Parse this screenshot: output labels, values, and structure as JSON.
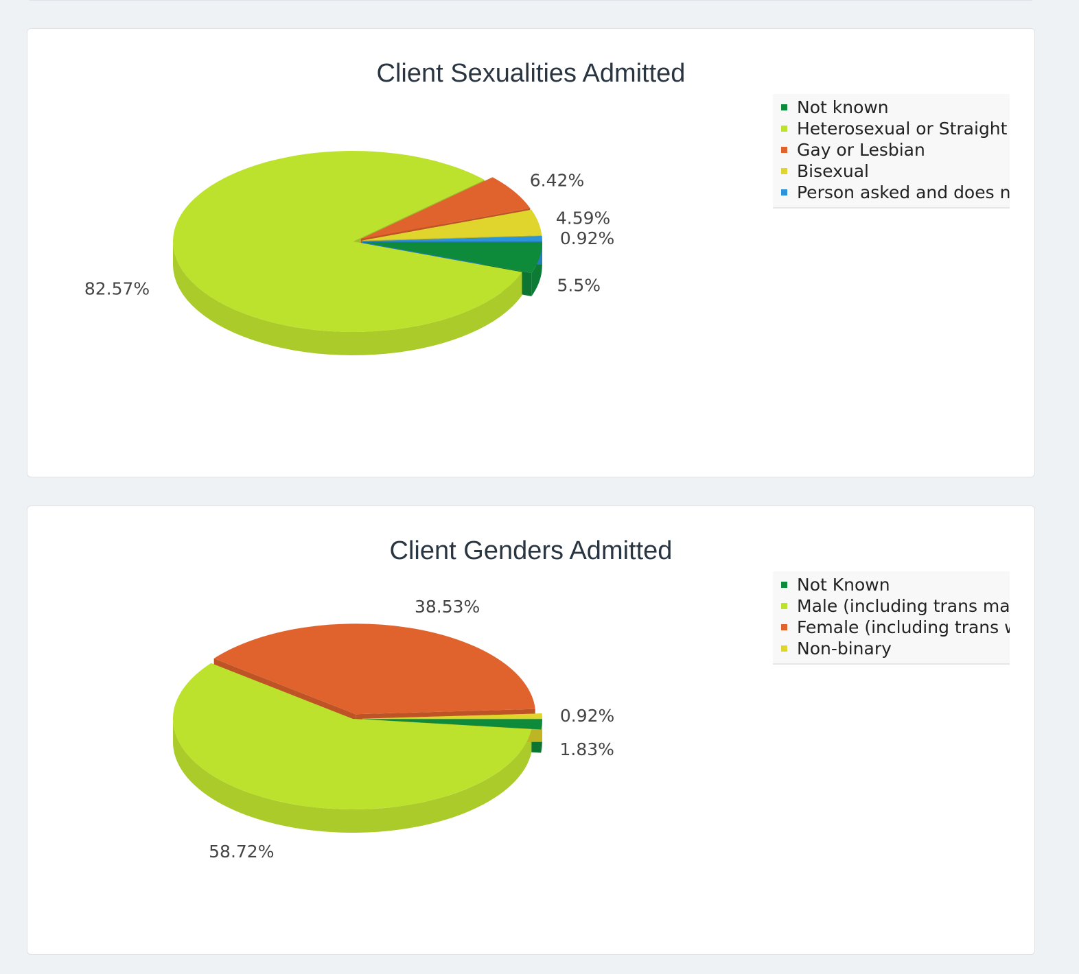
{
  "chart_data": [
    {
      "type": "pie",
      "title": "Client Sexualities Admitted",
      "legend_position": "top-right",
      "slices": [
        {
          "label": "Not known",
          "value": 5.5,
          "display": "5.5%",
          "color": "#0d8a3a"
        },
        {
          "label": "Heterosexual or Straight",
          "value": 82.57,
          "display": "82.57%",
          "color": "#bde22e"
        },
        {
          "label": "Gay or Lesbian",
          "value": 6.42,
          "display": "6.42%",
          "color": "#e0632d"
        },
        {
          "label": "Bisexual",
          "value": 4.59,
          "display": "4.59%",
          "color": "#e0d52c"
        },
        {
          "label": "Person asked and does not wish to answer",
          "legend_text": "Person asked and does n",
          "value": 0.92,
          "display": "0.92%",
          "color": "#2b93d9"
        }
      ]
    },
    {
      "type": "pie",
      "title": "Client Genders Admitted",
      "legend_position": "top-right",
      "slices": [
        {
          "label": "Not Known",
          "value": 1.83,
          "display": "1.83%",
          "color": "#0d8a3a"
        },
        {
          "label": "Male (including trans man)",
          "legend_text": "Male (including trans mar",
          "value": 58.72,
          "display": "58.72%",
          "color": "#bde22e"
        },
        {
          "label": "Female (including trans woman)",
          "legend_text": "Female (including trans w",
          "value": 38.53,
          "display": "38.53%",
          "color": "#e0632d"
        },
        {
          "label": "Non-binary",
          "value": 0.92,
          "display": "0.92%",
          "color": "#e0d52c"
        }
      ]
    }
  ]
}
